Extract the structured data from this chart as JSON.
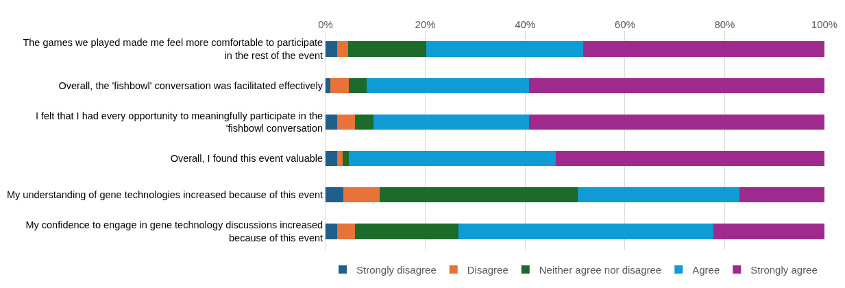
{
  "chart_data": {
    "type": "bar",
    "orientation": "horizontal",
    "stacked": true,
    "categories": [
      "The games we played made me feel more comfortable to participate\nin the rest of the event",
      "Overall, the 'fishbowl' conversation was facilitated effectively",
      "I felt that I had every opportunity to meaningfully participate in the\n'fishbowl conversation",
      "Overall, I found this event valuable",
      "My understanding of gene technologies increased because of this event",
      "My confidence to engage in gene technology discussions increased\nbecause of this event"
    ],
    "series": [
      {
        "name": "Strongly disagree",
        "color": "#1f5f8b",
        "values": [
          2.3,
          1.0,
          2.3,
          2.3,
          3.6,
          2.3
        ]
      },
      {
        "name": "Disagree",
        "color": "#e8723a",
        "values": [
          2.3,
          3.7,
          3.6,
          1.2,
          7.2,
          3.6
        ]
      },
      {
        "name": "Neither agree nor disagree",
        "color": "#1d6b2a",
        "values": [
          15.6,
          3.5,
          3.7,
          1.2,
          39.8,
          20.7
        ]
      },
      {
        "name": "Agree",
        "color": "#0f9bd4",
        "values": [
          31.5,
          32.6,
          31.2,
          41.4,
          32.4,
          51.2
        ]
      },
      {
        "name": "Strongly agree",
        "color": "#9e2a8e",
        "values": [
          48.3,
          59.2,
          59.2,
          53.9,
          17.0,
          22.2
        ]
      }
    ],
    "xlim": [
      0,
      100
    ],
    "xticks": [
      {
        "value": 0,
        "label": "0%"
      },
      {
        "value": 20,
        "label": "20%"
      },
      {
        "value": 40,
        "label": "40%"
      },
      {
        "value": 60,
        "label": "60%"
      },
      {
        "value": 80,
        "label": "80%"
      },
      {
        "value": 100,
        "label": "100%"
      }
    ],
    "grid": "x",
    "legend": "bottom"
  }
}
